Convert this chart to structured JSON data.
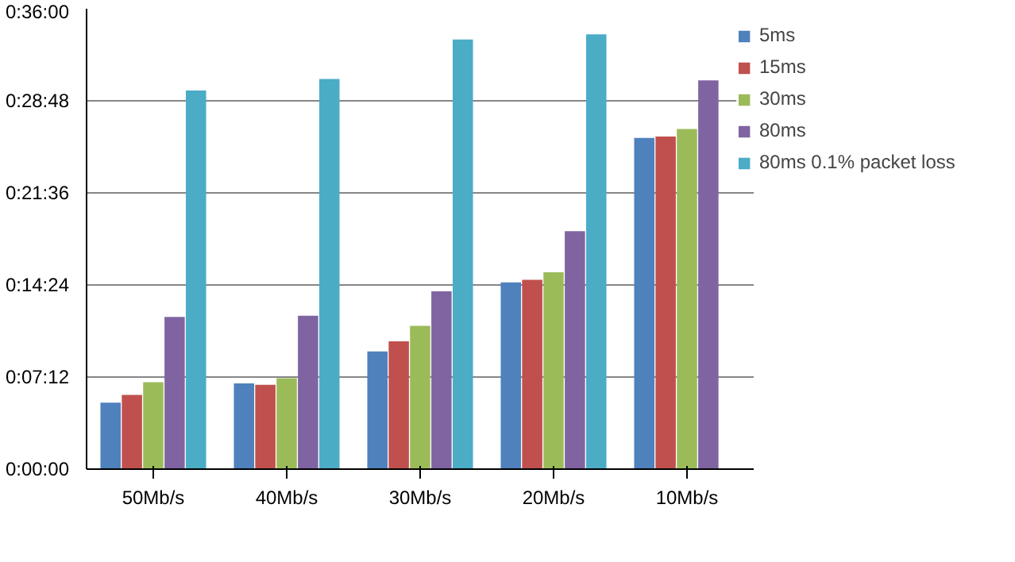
{
  "chart_data": {
    "type": "bar",
    "categories": [
      "50Mb/s",
      "40Mb/s",
      "30Mb/s",
      "20Mb/s",
      "10Mb/s"
    ],
    "series": [
      {
        "name": "5ms",
        "color": "#4f81bd",
        "values": [
          5.2,
          6.7,
          9.2,
          14.6,
          25.9
        ]
      },
      {
        "name": "15ms",
        "color": "#c0504d",
        "values": [
          5.8,
          6.6,
          10.0,
          14.8,
          26.0
        ]
      },
      {
        "name": "30ms",
        "color": "#9bbb59",
        "values": [
          6.8,
          7.1,
          11.2,
          15.4,
          26.6
        ]
      },
      {
        "name": "80ms",
        "color": "#8064a2",
        "values": [
          11.9,
          12.0,
          13.9,
          18.6,
          30.4
        ]
      },
      {
        "name": "80ms 0.1% packet loss",
        "color": "#4bacc6",
        "values": [
          29.6,
          30.5,
          33.6,
          34.0,
          null
        ]
      }
    ],
    "ylim": [
      0,
      36
    ],
    "yticks": [
      {
        "value": 0,
        "label": "0:00:00"
      },
      {
        "value": 7.2,
        "label": "0:07:12"
      },
      {
        "value": 14.4,
        "label": "0:14:24"
      },
      {
        "value": 21.6,
        "label": "0:21:36"
      },
      {
        "value": 28.8,
        "label": "0:28:48"
      },
      {
        "value": 36,
        "label": "0:36:00"
      }
    ],
    "grid": "y",
    "legend": "right"
  }
}
